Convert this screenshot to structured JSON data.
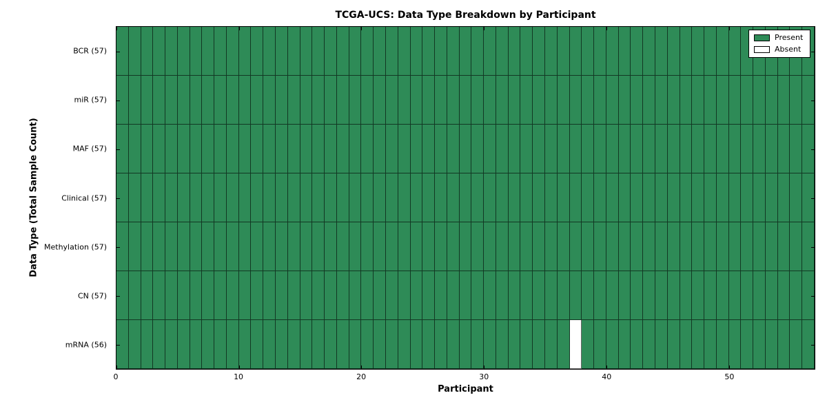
{
  "figure": {
    "title": "TCGA-UCS: Data Type Breakdown by Participant",
    "xlabel": "Participant",
    "ylabel": "Data Type (Total Sample Count)"
  },
  "legend": {
    "items": [
      {
        "label": "Present",
        "color": "#2e8b57"
      },
      {
        "label": "Absent",
        "color": "#ffffff"
      }
    ]
  },
  "chart_data": {
    "type": "heatmap",
    "title": "TCGA-UCS: Data Type Breakdown by Participant",
    "xlabel": "Participant",
    "ylabel": "Data Type (Total Sample Count)",
    "x_range": [
      0,
      57
    ],
    "n_participants": 57,
    "x_ticks": [
      0,
      10,
      20,
      30,
      40,
      50
    ],
    "rows": [
      {
        "label": "BCR (57)",
        "data_type": "BCR",
        "present_count": 57,
        "absent_participants": []
      },
      {
        "label": "miR (57)",
        "data_type": "miR",
        "present_count": 57,
        "absent_participants": []
      },
      {
        "label": "MAF (57)",
        "data_type": "MAF",
        "present_count": 57,
        "absent_participants": []
      },
      {
        "label": "Clinical (57)",
        "data_type": "Clinical",
        "present_count": 57,
        "absent_participants": []
      },
      {
        "label": "Methylation (57)",
        "data_type": "Methylation",
        "present_count": 57,
        "absent_participants": []
      },
      {
        "label": "CN (57)",
        "data_type": "CN",
        "present_count": 57,
        "absent_participants": []
      },
      {
        "label": "mRNA (56)",
        "data_type": "mRNA",
        "present_count": 56,
        "absent_participants": [
          37
        ]
      }
    ],
    "colors": {
      "present": "#2e8b57",
      "absent": "#ffffff"
    },
    "legend_entries": [
      "Present",
      "Absent"
    ],
    "legend_position": "upper right",
    "grid": "cell-borders"
  }
}
